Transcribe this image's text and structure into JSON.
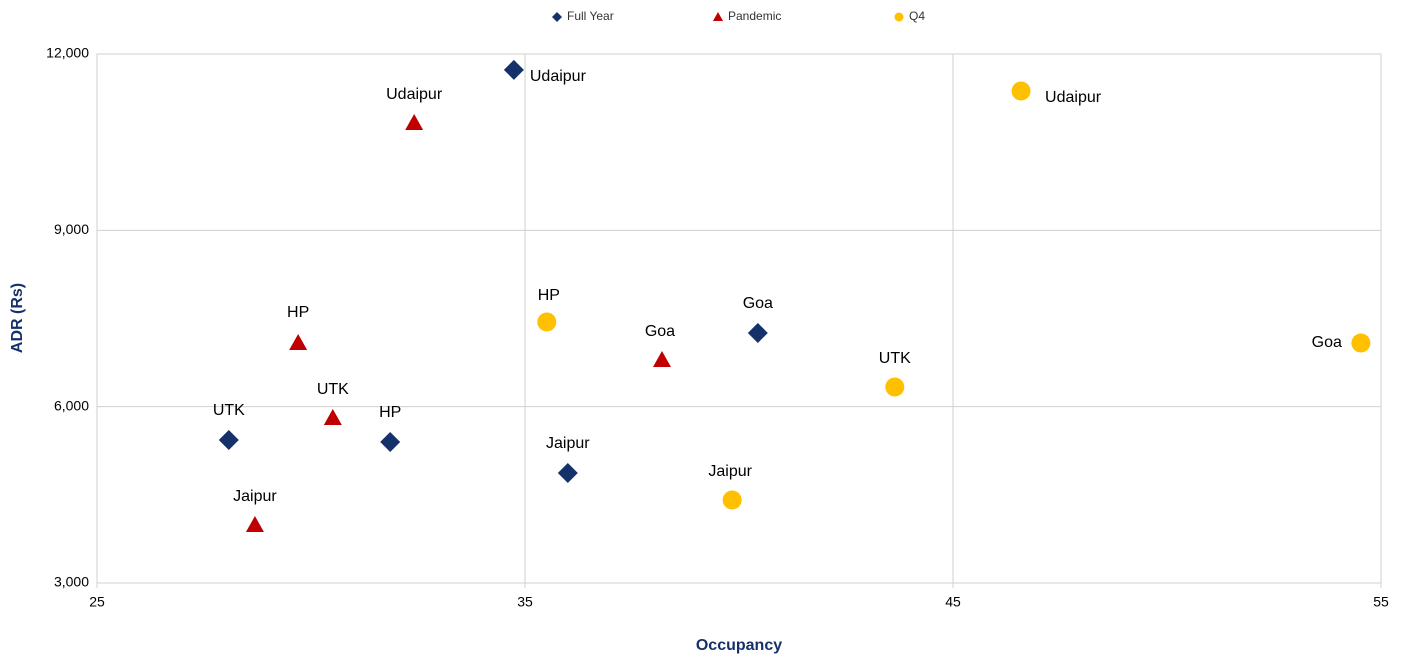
{
  "chart_data": {
    "type": "scatter",
    "x_label": "Occupancy",
    "y_label": "ADR (Rs)",
    "xlim": [
      25,
      55
    ],
    "xticks": [
      25,
      35,
      45,
      55
    ],
    "ylim": [
      3000,
      12000
    ],
    "yticks": [
      {
        "value": 3000,
        "label": "3,000"
      },
      {
        "value": 6000,
        "label": "6,000"
      },
      {
        "value": 9000,
        "label": "9,000"
      },
      {
        "value": 12000,
        "label": "12,000"
      }
    ],
    "grid": true,
    "legend": "top",
    "series": [
      {
        "name": "Full Year",
        "color": "#15316b",
        "marker": "diamond",
        "labels": [
          "Udaipur",
          "Goa",
          "UTK",
          "HP",
          "Jaipur"
        ],
        "x": [
          34.74,
          40.44,
          28.08,
          31.85,
          36.0
        ],
        "values": [
          11730,
          7254,
          5433,
          5399,
          4872
        ]
      },
      {
        "name": "Pandemic",
        "color": "#c00000",
        "marker": "triangle",
        "labels": [
          "Udaipur",
          "HP",
          "UTK",
          "Goa",
          "Jaipur"
        ],
        "x": [
          32.41,
          29.7,
          30.51,
          38.2,
          28.69
        ],
        "values": [
          10826,
          7083,
          5807,
          6794,
          3987
        ]
      },
      {
        "name": "Q4",
        "color": "#ffc000",
        "marker": "circle",
        "labels": [
          "Udaipur",
          "HP",
          "Goa",
          "UTK",
          "Jaipur"
        ],
        "x": [
          46.59,
          35.51,
          54.53,
          43.64,
          39.84
        ],
        "values": [
          11371,
          7441,
          7083,
          6335,
          4412
        ]
      }
    ]
  }
}
